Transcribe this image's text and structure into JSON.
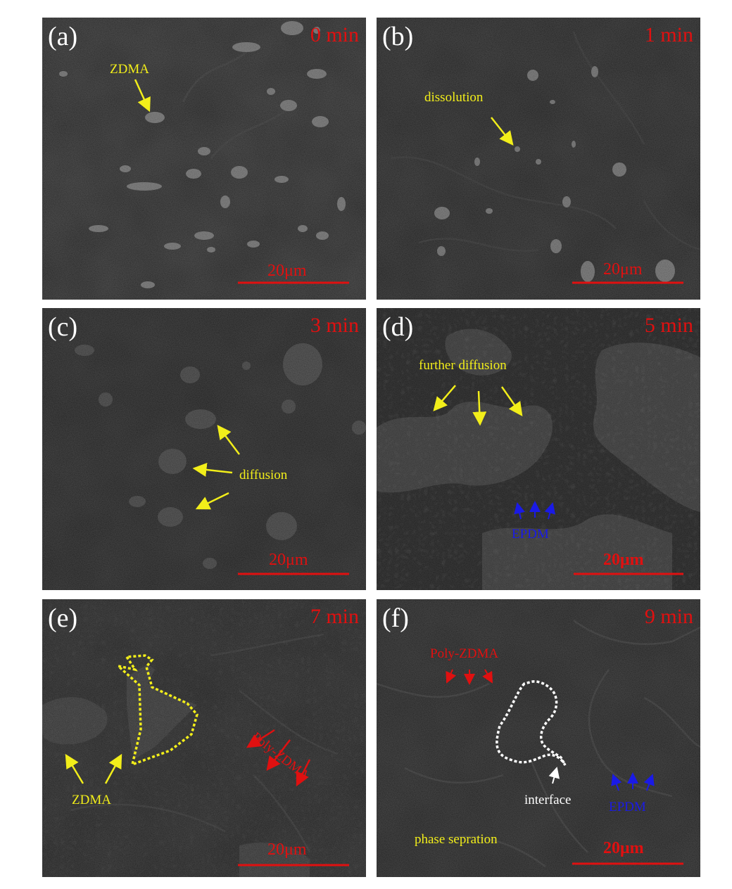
{
  "panels": [
    {
      "label": "(a)",
      "time": "0 min",
      "scale": "20μm",
      "annotations": [
        "ZDMA"
      ]
    },
    {
      "label": "(b)",
      "time": "1 min",
      "scale": "20μm",
      "annotations": [
        "dissolution"
      ]
    },
    {
      "label": "(c)",
      "time": "3 min",
      "scale": "20μm",
      "annotations": [
        "diffusion"
      ]
    },
    {
      "label": "(d)",
      "time": "5 min",
      "scale": "20μm",
      "annotations": [
        "further diffusion",
        "EPDM"
      ]
    },
    {
      "label": "(e)",
      "time": "7 min",
      "scale": "20μm",
      "annotations": [
        "ZDMA",
        "Poly-ZDMA"
      ]
    },
    {
      "label": "(f)",
      "time": "9 min",
      "scale": "20μm",
      "annotations": [
        "Poly-ZDMA",
        "interface",
        "EPDM",
        "phase sepration"
      ]
    }
  ],
  "colors": {
    "yellow": "#f2ee1a",
    "red": "#e01010",
    "blue": "#1a1ae6",
    "white": "#ffffff",
    "background": "#232323"
  }
}
